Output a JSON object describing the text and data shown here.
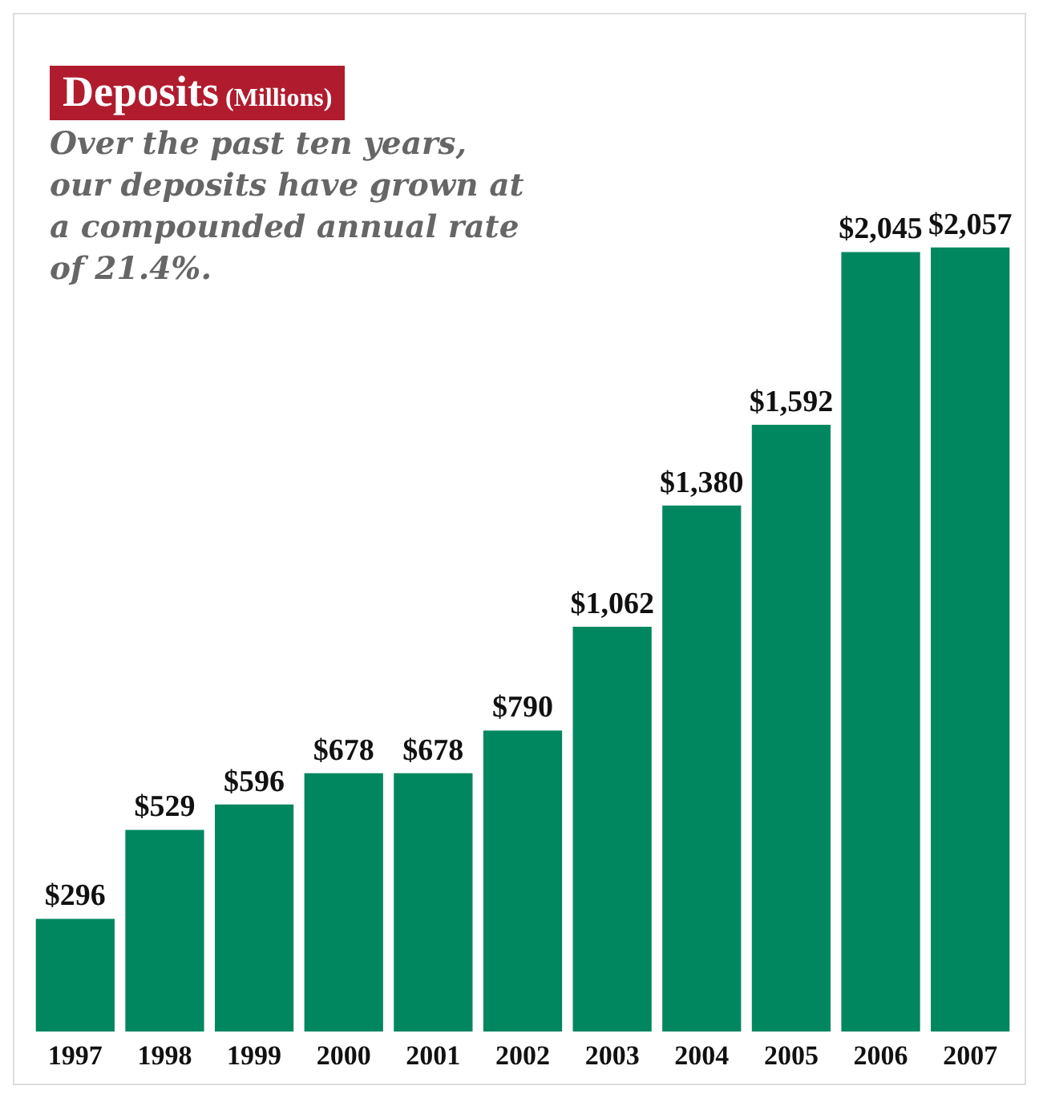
{
  "chart_data": {
    "type": "bar",
    "title": "Deposits",
    "subtitle": "(Millions)",
    "annotations": [
      "Over the past ten years, our deposits have grown at a compounded annual rate of 21.4%."
    ],
    "categories": [
      "1997",
      "1998",
      "1999",
      "2000",
      "2001",
      "2002",
      "2003",
      "2004",
      "2005",
      "2006",
      "2007"
    ],
    "values": [
      296,
      529,
      596,
      678,
      678,
      790,
      1062,
      1380,
      1592,
      2045,
      2057
    ],
    "value_labels": [
      "$296",
      "$529",
      "$596",
      "$678",
      "$678",
      "$790",
      "$1,062",
      "$1,380",
      "$1,592",
      "$2,045",
      "$2,057"
    ],
    "color": "#00875f",
    "grid": false,
    "legend": false,
    "tick_labels": "x"
  }
}
